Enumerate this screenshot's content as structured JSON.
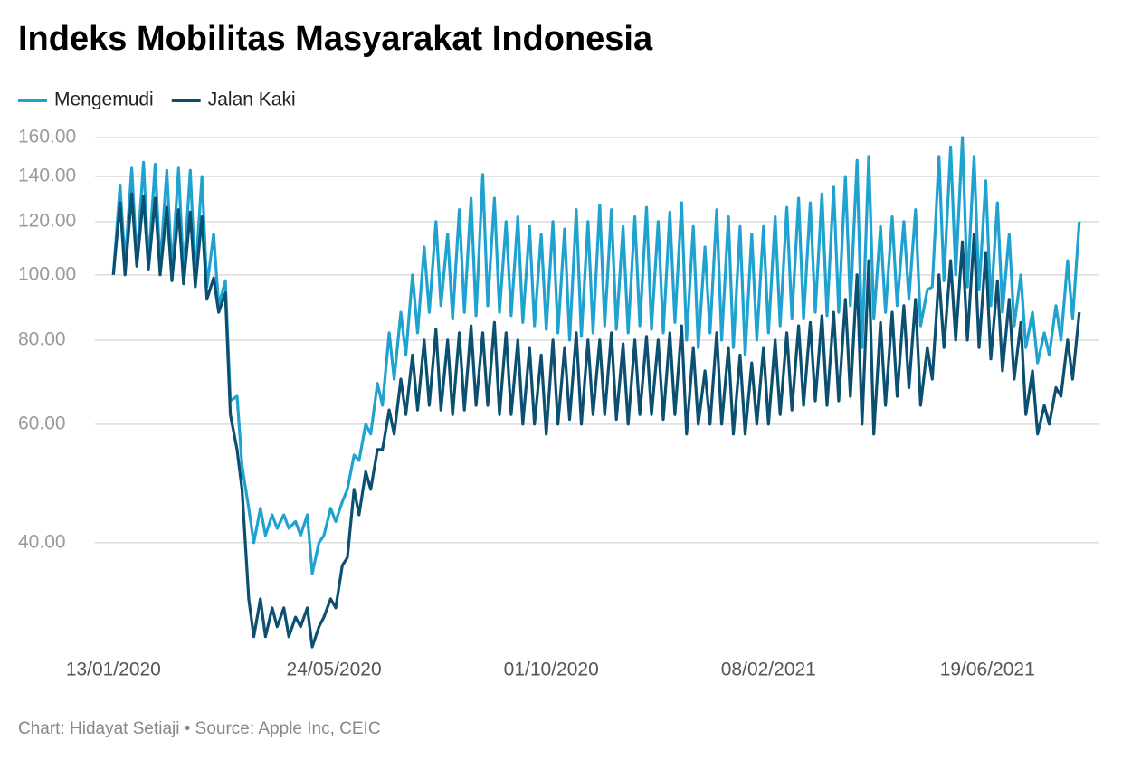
{
  "chart_data": {
    "type": "line",
    "title": "Indeks Mobilitas Masyarakat Indonesia",
    "source": "Chart: Hidayat Setiaji • Source: Apple Inc, CEIC",
    "legend": "top-left",
    "grid": true,
    "yscale": "log",
    "xlim": [
      "02/01/2020",
      "25/08/2021"
    ],
    "xticks": [
      "13/01/2020",
      "24/05/2020",
      "01/10/2020",
      "08/02/2021",
      "19/06/2021"
    ],
    "ylim": [
      28,
      160
    ],
    "yticks": [
      {
        "value": 40,
        "label": "40.00"
      },
      {
        "value": 60,
        "label": "60.00"
      },
      {
        "value": 80,
        "label": "80.00"
      },
      {
        "value": 100,
        "label": "100.00"
      },
      {
        "value": 120,
        "label": "120.00"
      },
      {
        "value": 140,
        "label": "140.00"
      },
      {
        "value": 160,
        "label": "160.00"
      }
    ],
    "x": [
      "13/01/2020",
      "17/01/2020",
      "20/01/2020",
      "24/01/2020",
      "27/01/2020",
      "31/01/2020",
      "03/02/2020",
      "07/02/2020",
      "10/02/2020",
      "14/02/2020",
      "17/02/2020",
      "21/02/2020",
      "24/02/2020",
      "28/02/2020",
      "02/03/2020",
      "06/03/2020",
      "09/03/2020",
      "13/03/2020",
      "16/03/2020",
      "20/03/2020",
      "23/03/2020",
      "27/03/2020",
      "30/03/2020",
      "03/04/2020",
      "06/04/2020",
      "10/04/2020",
      "13/04/2020",
      "17/04/2020",
      "20/04/2020",
      "24/04/2020",
      "27/04/2020",
      "01/05/2020",
      "04/05/2020",
      "08/05/2020",
      "11/05/2020",
      "15/05/2020",
      "18/05/2020",
      "22/05/2020",
      "25/05/2020",
      "29/05/2020",
      "01/06/2020",
      "05/06/2020",
      "08/06/2020",
      "12/06/2020",
      "15/06/2020",
      "19/06/2020",
      "22/06/2020",
      "26/06/2020",
      "29/06/2020",
      "03/07/2020",
      "06/07/2020",
      "10/07/2020",
      "13/07/2020",
      "17/07/2020",
      "20/07/2020",
      "24/07/2020",
      "27/07/2020",
      "31/07/2020",
      "03/08/2020",
      "07/08/2020",
      "10/08/2020",
      "14/08/2020",
      "17/08/2020",
      "21/08/2020",
      "24/08/2020",
      "28/08/2020",
      "31/08/2020",
      "04/09/2020",
      "07/09/2020",
      "11/09/2020",
      "14/09/2020",
      "18/09/2020",
      "21/09/2020",
      "25/09/2020",
      "28/09/2020",
      "02/10/2020",
      "05/10/2020",
      "09/10/2020",
      "12/10/2020",
      "16/10/2020",
      "19/10/2020",
      "23/10/2020",
      "26/10/2020",
      "30/10/2020",
      "02/11/2020",
      "06/11/2020",
      "09/11/2020",
      "13/11/2020",
      "16/11/2020",
      "20/11/2020",
      "23/11/2020",
      "27/11/2020",
      "30/11/2020",
      "04/12/2020",
      "07/12/2020",
      "11/12/2020",
      "14/12/2020",
      "18/12/2020",
      "21/12/2020",
      "25/12/2020",
      "28/12/2020",
      "01/01/2021",
      "04/01/2021",
      "08/01/2021",
      "11/01/2021",
      "15/01/2021",
      "18/01/2021",
      "22/01/2021",
      "25/01/2021",
      "29/01/2021",
      "01/02/2021",
      "05/02/2021",
      "08/02/2021",
      "12/02/2021",
      "15/02/2021",
      "19/02/2021",
      "22/02/2021",
      "26/02/2021",
      "01/03/2021",
      "05/03/2021",
      "08/03/2021",
      "12/03/2021",
      "15/03/2021",
      "19/03/2021",
      "22/03/2021",
      "26/03/2021",
      "29/03/2021",
      "02/04/2021",
      "05/04/2021",
      "09/04/2021",
      "12/04/2021",
      "16/04/2021",
      "19/04/2021",
      "23/04/2021",
      "26/04/2021",
      "30/04/2021",
      "03/05/2021",
      "07/05/2021",
      "10/05/2021",
      "14/05/2021",
      "17/05/2021",
      "21/05/2021",
      "24/05/2021",
      "28/05/2021",
      "31/05/2021",
      "04/06/2021",
      "07/06/2021",
      "11/06/2021",
      "14/06/2021",
      "18/06/2021",
      "21/06/2021",
      "25/06/2021",
      "28/06/2021",
      "02/07/2021",
      "05/07/2021",
      "09/07/2021",
      "12/07/2021",
      "16/07/2021",
      "19/07/2021",
      "23/07/2021",
      "26/07/2021",
      "30/07/2021",
      "02/08/2021",
      "06/08/2021",
      "09/08/2021",
      "13/08/2021"
    ],
    "series": [
      {
        "name": "Mengemudi",
        "color": "#1fa2d0",
        "values": [
          100,
          136,
          104,
          144,
          105,
          147,
          104,
          146,
          103,
          143,
          101,
          144,
          100,
          143,
          99,
          140,
          96,
          115,
          90,
          98,
          65,
          66,
          52,
          45,
          40,
          45,
          41,
          44,
          42,
          44,
          42,
          43,
          41,
          44,
          36,
          40,
          41,
          45,
          43,
          46,
          48,
          54,
          53,
          60,
          58,
          69,
          64,
          82,
          70,
          88,
          76,
          100,
          82,
          110,
          88,
          120,
          90,
          115,
          86,
          125,
          88,
          130,
          87,
          141,
          90,
          130,
          88,
          120,
          87,
          122,
          85,
          118,
          84,
          115,
          83,
          120,
          82,
          117,
          80,
          125,
          81,
          120,
          82,
          127,
          84,
          125,
          83,
          118,
          82,
          122,
          84,
          126,
          83,
          120,
          82,
          124,
          85,
          128,
          80,
          118,
          78,
          110,
          82,
          125,
          80,
          122,
          78,
          118,
          76,
          115,
          80,
          118,
          82,
          122,
          84,
          126,
          86,
          130,
          86,
          128,
          88,
          132,
          87,
          135,
          88,
          140,
          90,
          148,
          78,
          150,
          86,
          118,
          88,
          122,
          90,
          120,
          92,
          125,
          84,
          95,
          96,
          150,
          98,
          155,
          100,
          160,
          96,
          150,
          95,
          138,
          90,
          128,
          88,
          115,
          84,
          100,
          78,
          88,
          74,
          82,
          76,
          90,
          80,
          105,
          86,
          120
        ]
      },
      {
        "name": "Jalan Kaki",
        "color": "#0b4f71",
        "values": [
          100,
          128,
          100,
          132,
          103,
          131,
          102,
          130,
          100,
          126,
          98,
          125,
          97,
          124,
          96,
          122,
          92,
          99,
          88,
          94,
          62,
          55,
          48,
          33,
          29,
          33,
          29,
          32,
          30,
          32,
          29,
          31,
          30,
          32,
          28,
          30,
          31,
          33,
          32,
          37,
          38,
          48,
          44,
          51,
          48,
          55,
          55,
          63,
          58,
          70,
          62,
          76,
          63,
          80,
          64,
          83,
          63,
          80,
          62,
          82,
          63,
          84,
          64,
          82,
          64,
          85,
          62,
          82,
          62,
          80,
          60,
          78,
          60,
          76,
          58,
          80,
          60,
          78,
          61,
          82,
          60,
          80,
          62,
          80,
          62,
          82,
          61,
          79,
          60,
          80,
          62,
          81,
          62,
          80,
          61,
          82,
          62,
          84,
          58,
          78,
          60,
          72,
          60,
          82,
          60,
          78,
          58,
          76,
          58,
          74,
          60,
          78,
          60,
          80,
          62,
          82,
          63,
          84,
          64,
          85,
          65,
          87,
          64,
          88,
          65,
          92,
          66,
          100,
          60,
          105,
          58,
          85,
          64,
          88,
          66,
          90,
          68,
          92,
          64,
          78,
          70,
          100,
          78,
          105,
          80,
          112,
          80,
          115,
          78,
          108,
          75,
          98,
          72,
          92,
          70,
          85,
          62,
          72,
          58,
          64,
          60,
          68,
          66,
          80,
          70,
          88
        ]
      }
    ]
  }
}
